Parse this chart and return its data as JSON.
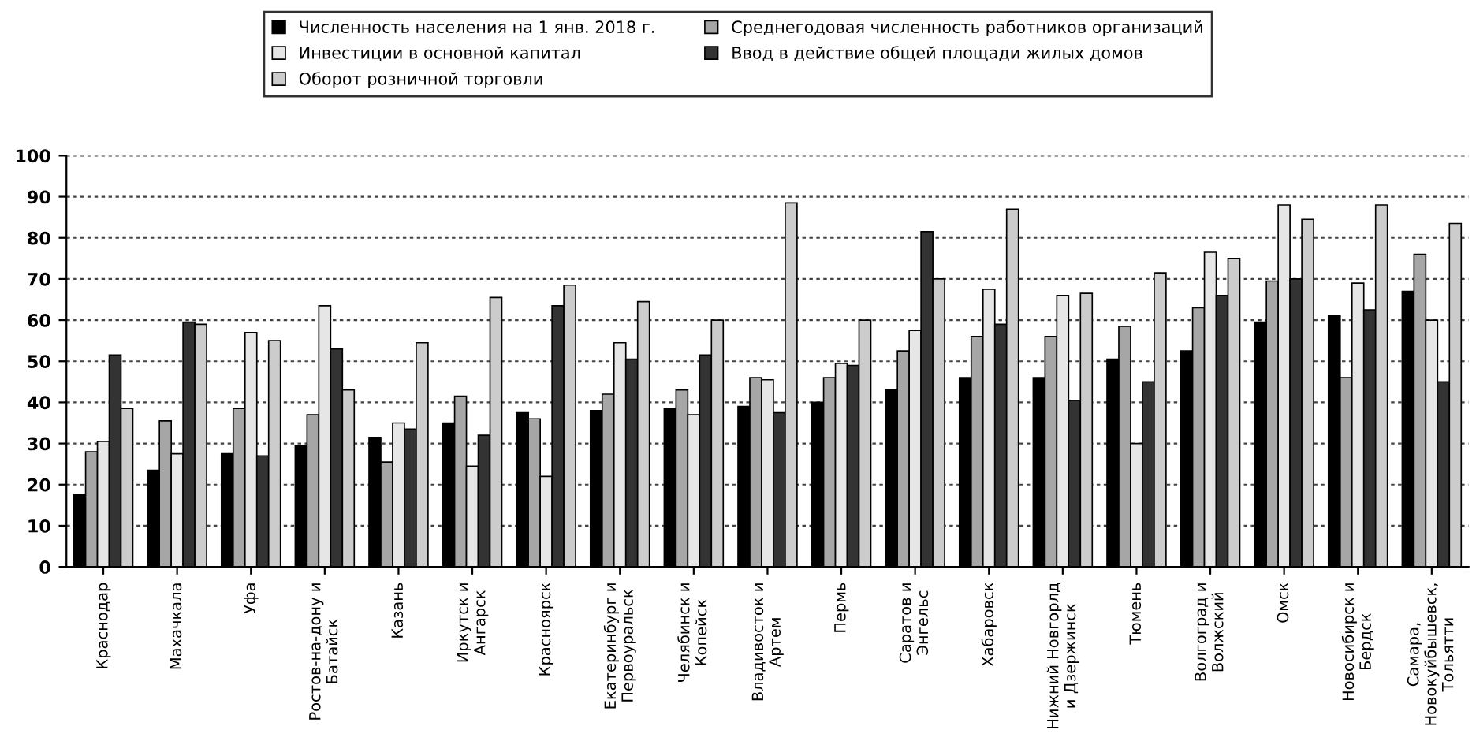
{
  "chart_data": {
    "type": "bar",
    "categories": [
      "Краснодар",
      "Махачкала",
      "Уфа",
      "Ростов-на-дону и\nБатайск",
      "Казань",
      "Иркутск и\nАнгарск",
      "Красноярск",
      "Екатеринбург и\nПервоуральск",
      "Челябинск и\nКопейск",
      "Владивосток и\nАртем",
      "Пермь",
      "Саратов и\nЭнгельс",
      "Хабаровск",
      "Нижний Новгорлд\nи Дзержинск",
      "Тюмень",
      "Волгоград и\nВолжский",
      "Омск",
      "Новосибирск и\nБердск",
      "Самара,\nНовокуйбышевск,\nТольятти"
    ],
    "series": [
      {
        "name": "Численность населения на 1 янв. 2018 г.",
        "color": "#000000",
        "values": [
          17.5,
          23.5,
          27.5,
          29.5,
          31.5,
          35,
          37.5,
          38,
          38.5,
          39,
          40,
          43,
          46,
          46,
          50.5,
          52.5,
          59.5,
          61,
          67
        ]
      },
      {
        "name": "Среднегодовая численность работников организаций",
        "color": "#a6a6a6",
        "values": [
          28,
          35.5,
          38.5,
          37,
          25.5,
          41.5,
          36,
          42,
          43,
          46,
          46,
          52.5,
          56,
          56,
          58.5,
          63,
          69.5,
          46,
          76
        ]
      },
      {
        "name": "Инвестиции в основной капитал",
        "color": "#e6e6e6",
        "values": [
          30.5,
          27.5,
          57,
          63.5,
          35,
          24.5,
          22,
          54.5,
          37,
          45.5,
          49.5,
          57.5,
          67.5,
          66,
          30,
          76.5,
          88,
          69,
          60
        ]
      },
      {
        "name": "Ввод в действие общей площади жилых домов",
        "color": "#333333",
        "values": [
          51.5,
          59.5,
          27,
          53,
          33.5,
          32,
          63.5,
          50.5,
          51.5,
          37.5,
          49,
          81.5,
          59,
          40.5,
          45,
          66,
          70,
          62.5,
          45
        ]
      },
      {
        "name": "Оборот розничной торговли",
        "color": "#cccccc",
        "values": [
          38.5,
          59,
          55,
          43,
          54.5,
          65.5,
          68.5,
          64.5,
          60,
          88.5,
          60,
          70,
          87,
          66.5,
          71.5,
          75,
          84.5,
          88,
          83.5
        ]
      }
    ],
    "ylim": [
      0,
      100
    ],
    "yticks": [
      0,
      10,
      20,
      30,
      40,
      50,
      60,
      70,
      80,
      90,
      100
    ],
    "grid": "y",
    "legend": "top"
  }
}
